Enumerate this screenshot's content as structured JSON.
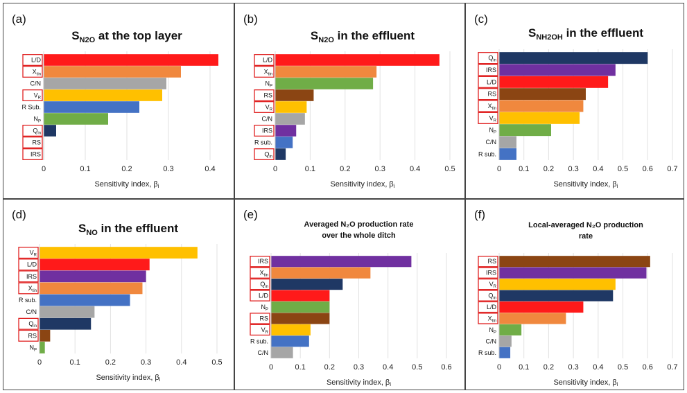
{
  "chart_data": [
    {
      "panel": "(a)",
      "type": "bar",
      "orientation": "horizontal",
      "title_main": "S",
      "title_sub": "N2O",
      "title_rest": " at the top layer",
      "title_lines": [],
      "xlabel": "Sensitivity index, βi",
      "xlim": [
        0,
        0.4
      ],
      "xticks": [
        0,
        0.1,
        0.2,
        0.3,
        0.4
      ],
      "categories": [
        "L/D",
        "Xtin",
        "C/N",
        "VR",
        "R Sub.",
        "NP",
        "Qin",
        "RS",
        "IRS"
      ],
      "values": [
        0.42,
        0.33,
        0.295,
        0.285,
        0.23,
        0.155,
        0.03,
        0,
        0
      ],
      "colors": [
        "#ff1a1a",
        "#f0883e",
        "#a6a6a6",
        "#ffc000",
        "#4472c4",
        "#70ad47",
        "#1f3864",
        "#8b4513",
        "#7030a0"
      ],
      "boxed": [
        true,
        true,
        false,
        true,
        false,
        false,
        true,
        true,
        true
      ]
    },
    {
      "panel": "(b)",
      "type": "bar",
      "orientation": "horizontal",
      "title_main": "S",
      "title_sub": "N2O",
      "title_rest": " in the effluent",
      "title_lines": [],
      "xlabel": "Sensitivity index, βi",
      "xlim": [
        0,
        0.5
      ],
      "xticks": [
        0,
        0.1,
        0.2,
        0.3,
        0.4,
        0.5
      ],
      "categories": [
        "L/D",
        "Xtin",
        "NP",
        "RS",
        "VR",
        "C/N",
        "IRS",
        "R sub.",
        "Qin"
      ],
      "values": [
        0.47,
        0.29,
        0.28,
        0.11,
        0.09,
        0.085,
        0.06,
        0.05,
        0.03
      ],
      "colors": [
        "#ff1a1a",
        "#f0883e",
        "#70ad47",
        "#8b4513",
        "#ffc000",
        "#a6a6a6",
        "#7030a0",
        "#4472c4",
        "#1f3864"
      ],
      "boxed": [
        true,
        true,
        false,
        true,
        true,
        false,
        true,
        false,
        true
      ]
    },
    {
      "panel": "(c)",
      "type": "bar",
      "orientation": "horizontal",
      "title_main": "S",
      "title_sub": "NH2OH",
      "title_rest": " in the effluent",
      "title_lines": [],
      "xlabel": "Sensitivity index, βi",
      "xlim": [
        0,
        0.7
      ],
      "xticks": [
        0,
        0.1,
        0.2,
        0.3,
        0.4,
        0.5,
        0.6,
        0.7
      ],
      "categories": [
        "Qin",
        "IRS",
        "L/D",
        "RS",
        "Xtin",
        "VR",
        "NP",
        "C/N",
        "R sub."
      ],
      "values": [
        0.6,
        0.47,
        0.44,
        0.35,
        0.34,
        0.325,
        0.21,
        0.07,
        0.07
      ],
      "colors": [
        "#1f3864",
        "#7030a0",
        "#ff1a1a",
        "#8b4513",
        "#f0883e",
        "#ffc000",
        "#70ad47",
        "#a6a6a6",
        "#4472c4"
      ],
      "boxed": [
        true,
        true,
        true,
        true,
        true,
        true,
        false,
        false,
        false
      ]
    },
    {
      "panel": "(d)",
      "type": "bar",
      "orientation": "horizontal",
      "title_main": "S",
      "title_sub": "NO",
      "title_rest": " in the effluent",
      "title_lines": [],
      "xlabel": "Sensitivity index, βi",
      "xlim": [
        0,
        0.5
      ],
      "xticks": [
        0,
        0.1,
        0.2,
        0.3,
        0.4,
        0.5
      ],
      "categories": [
        "VR",
        "L/D",
        "IRS",
        "Xtin",
        "R sub.",
        "C/N",
        "Qin",
        "RS",
        "NP"
      ],
      "values": [
        0.445,
        0.31,
        0.3,
        0.29,
        0.255,
        0.155,
        0.145,
        0.03,
        0.015
      ],
      "colors": [
        "#ffc000",
        "#ff1a1a",
        "#7030a0",
        "#f0883e",
        "#4472c4",
        "#a6a6a6",
        "#1f3864",
        "#8b4513",
        "#70ad47"
      ],
      "boxed": [
        true,
        true,
        true,
        true,
        false,
        false,
        true,
        true,
        false
      ]
    },
    {
      "panel": "(e)",
      "type": "bar",
      "orientation": "horizontal",
      "title_main": "",
      "title_sub": "",
      "title_rest": "",
      "title_lines": [
        "Averaged N₂O production rate",
        "over the whole ditch"
      ],
      "xlabel": "Sensitivity index, βi",
      "xlim": [
        0,
        0.6
      ],
      "xticks": [
        0,
        0.1,
        0.2,
        0.3,
        0.4,
        0.5,
        0.6
      ],
      "categories": [
        "IRS",
        "Xtin",
        "Qin",
        "L/D",
        "NP",
        "RS",
        "VR",
        "R sub.",
        "C/N"
      ],
      "values": [
        0.48,
        0.34,
        0.245,
        0.2,
        0.2,
        0.2,
        0.135,
        0.13,
        0.075
      ],
      "colors": [
        "#7030a0",
        "#f0883e",
        "#1f3864",
        "#ff1a1a",
        "#70ad47",
        "#8b4513",
        "#ffc000",
        "#4472c4",
        "#a6a6a6"
      ],
      "boxed": [
        true,
        true,
        true,
        true,
        false,
        true,
        true,
        false,
        false
      ]
    },
    {
      "panel": "(f)",
      "type": "bar",
      "orientation": "horizontal",
      "title_main": "",
      "title_sub": "",
      "title_rest": "",
      "title_lines": [
        "Local-averaged N₂O production",
        "rate"
      ],
      "xlabel": "Sensitivity index, βi",
      "xlim": [
        0,
        0.7
      ],
      "xticks": [
        0,
        0.1,
        0.2,
        0.3,
        0.4,
        0.5,
        0.6,
        0.7
      ],
      "categories": [
        "RS",
        "IRS",
        "VR",
        "Qin",
        "L/D",
        "Xtin",
        "NP",
        "C/N",
        "R sub."
      ],
      "values": [
        0.61,
        0.595,
        0.47,
        0.46,
        0.34,
        0.27,
        0.09,
        0.05,
        0.045
      ],
      "colors": [
        "#8b4513",
        "#7030a0",
        "#ffc000",
        "#1f3864",
        "#ff1a1a",
        "#f0883e",
        "#70ad47",
        "#a6a6a6",
        "#4472c4"
      ],
      "boxed": [
        true,
        true,
        true,
        true,
        true,
        true,
        false,
        false,
        false
      ]
    }
  ]
}
